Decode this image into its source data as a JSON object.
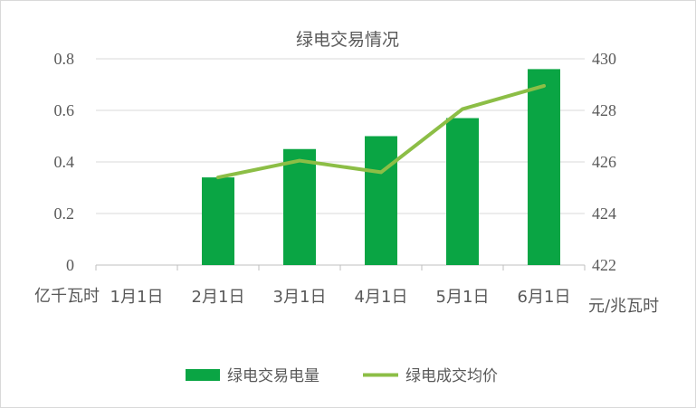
{
  "chart_data": {
    "type": "bar",
    "title": "绿电交易情况",
    "categories": [
      "1月1日",
      "2月1日",
      "3月1日",
      "4月1日",
      "5月1日",
      "6月1日"
    ],
    "y_left": {
      "unit_label": "亿千瓦时",
      "ylim": [
        0,
        0.8
      ],
      "ticks": [
        "0",
        "0.2",
        "0.4",
        "0.6",
        "0.8"
      ]
    },
    "y_right": {
      "unit_label": "元/兆瓦时",
      "ylim": [
        422,
        430
      ],
      "ticks": [
        "422",
        "424",
        "426",
        "428",
        "430"
      ]
    },
    "series": [
      {
        "name": "绿电交易电量",
        "type": "bar",
        "axis": "left",
        "color": "#0aa544",
        "values": [
          null,
          0.34,
          0.45,
          0.5,
          0.57,
          0.76
        ]
      },
      {
        "name": "绿电成交均价",
        "type": "line",
        "axis": "right",
        "color": "#8cbe46",
        "values": [
          null,
          425.4,
          426.05,
          425.6,
          428.05,
          428.95
        ]
      }
    ],
    "grid": true,
    "legend_position": "bottom"
  }
}
